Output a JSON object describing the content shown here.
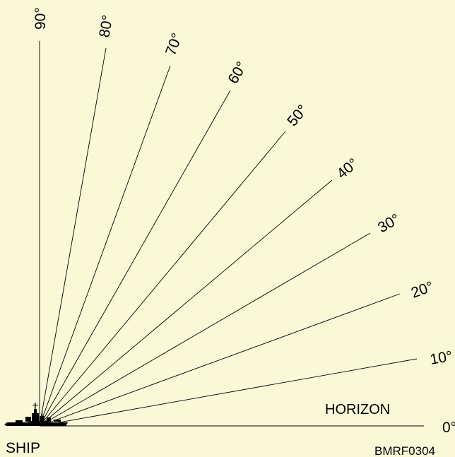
{
  "diagram": {
    "background_color": "#fbf8d8",
    "line_color": "#000000",
    "ship_color": "#000000",
    "angles": [
      {
        "label": "0°"
      },
      {
        "label": "10°"
      },
      {
        "label": "20°"
      },
      {
        "label": "30°"
      },
      {
        "label": "40°"
      },
      {
        "label": "50°"
      },
      {
        "label": "60°"
      },
      {
        "label": "70°"
      },
      {
        "label": "80°"
      },
      {
        "label": "90°"
      }
    ],
    "horizon_label": "HORIZON",
    "ship_label": "SHIP",
    "figure_id": "BMRF0304"
  }
}
